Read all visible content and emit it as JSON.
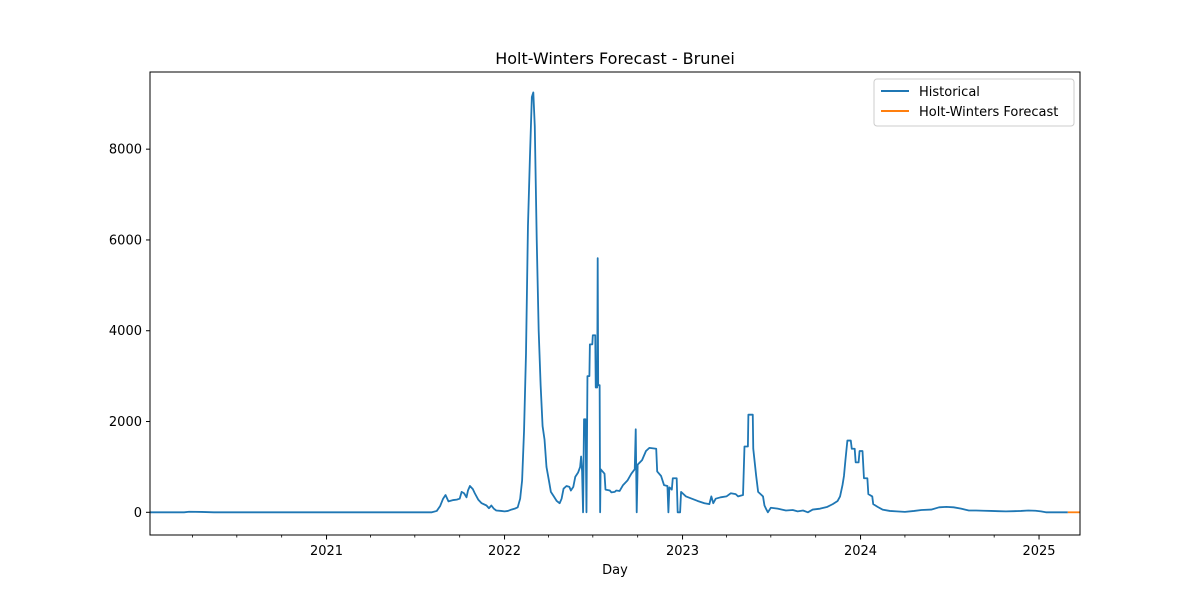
{
  "chart_data": {
    "type": "line",
    "title": "Holt-Winters Forecast - Brunei",
    "xlabel": "Day",
    "ylabel": "",
    "xlim": [
      "2020-01-05",
      "2025-03-26"
    ],
    "ylim": [
      -500,
      9700
    ],
    "x_ticks": [
      {
        "date": "2021-01-01",
        "label": "2021"
      },
      {
        "date": "2022-01-01",
        "label": "2022"
      },
      {
        "date": "2023-01-01",
        "label": "2023"
      },
      {
        "date": "2024-01-01",
        "label": "2024"
      },
      {
        "date": "2025-01-01",
        "label": "2025"
      }
    ],
    "x_minor_ticks": [
      "2020-04-01",
      "2020-07-01",
      "2020-10-01",
      "2021-04-01",
      "2021-07-01",
      "2021-10-01",
      "2022-04-01",
      "2022-07-01",
      "2022-10-01",
      "2023-04-01",
      "2023-07-01",
      "2023-10-01",
      "2024-04-01",
      "2024-07-01",
      "2024-10-01",
      "2025-04-01"
    ],
    "y_ticks": [
      0,
      2000,
      4000,
      6000,
      8000
    ],
    "y_tick_labels": [
      "0",
      "2000",
      "4000",
      "6000",
      "8000"
    ],
    "legend_position": "top-right",
    "grid": false,
    "series": [
      {
        "name": "Historical",
        "color": "#1f77b4",
        "points": [
          [
            "2020-01-05",
            0
          ],
          [
            "2020-03-15",
            0
          ],
          [
            "2020-03-25",
            12
          ],
          [
            "2020-04-20",
            8
          ],
          [
            "2020-05-15",
            0
          ],
          [
            "2021-01-01",
            0
          ],
          [
            "2021-07-01",
            0
          ],
          [
            "2021-08-05",
            0
          ],
          [
            "2021-08-15",
            30
          ],
          [
            "2021-08-22",
            140
          ],
          [
            "2021-08-28",
            300
          ],
          [
            "2021-09-02",
            380
          ],
          [
            "2021-09-08",
            240
          ],
          [
            "2021-09-18",
            270
          ],
          [
            "2021-09-25",
            280
          ],
          [
            "2021-10-01",
            300
          ],
          [
            "2021-10-05",
            450
          ],
          [
            "2021-10-10",
            420
          ],
          [
            "2021-10-15",
            330
          ],
          [
            "2021-10-18",
            480
          ],
          [
            "2021-10-22",
            580
          ],
          [
            "2021-10-28",
            510
          ],
          [
            "2021-11-01",
            420
          ],
          [
            "2021-11-08",
            280
          ],
          [
            "2021-11-15",
            200
          ],
          [
            "2021-11-25",
            150
          ],
          [
            "2021-11-30",
            90
          ],
          [
            "2021-12-05",
            150
          ],
          [
            "2021-12-10",
            80
          ],
          [
            "2021-12-15",
            40
          ],
          [
            "2021-12-25",
            30
          ],
          [
            "2022-01-01",
            20
          ],
          [
            "2022-01-08",
            30
          ],
          [
            "2022-01-15",
            60
          ],
          [
            "2022-01-22",
            80
          ],
          [
            "2022-01-28",
            110
          ],
          [
            "2022-02-02",
            300
          ],
          [
            "2022-02-06",
            700
          ],
          [
            "2022-02-10",
            1800
          ],
          [
            "2022-02-14",
            3500
          ],
          [
            "2022-02-18",
            6300
          ],
          [
            "2022-02-22",
            7800
          ],
          [
            "2022-02-26",
            9150
          ],
          [
            "2022-03-01",
            9250
          ],
          [
            "2022-03-04",
            8500
          ],
          [
            "2022-03-08",
            6000
          ],
          [
            "2022-03-12",
            4000
          ],
          [
            "2022-03-16",
            2800
          ],
          [
            "2022-03-20",
            1900
          ],
          [
            "2022-03-24",
            1600
          ],
          [
            "2022-03-28",
            1000
          ],
          [
            "2022-04-02",
            700
          ],
          [
            "2022-04-06",
            450
          ],
          [
            "2022-04-12",
            350
          ],
          [
            "2022-04-18",
            250
          ],
          [
            "2022-04-24",
            200
          ],
          [
            "2022-04-28",
            300
          ],
          [
            "2022-05-02",
            520
          ],
          [
            "2022-05-08",
            580
          ],
          [
            "2022-05-14",
            560
          ],
          [
            "2022-05-17",
            480
          ],
          [
            "2022-05-22",
            560
          ],
          [
            "2022-05-26",
            780
          ],
          [
            "2022-06-01",
            880
          ],
          [
            "2022-06-05",
            1000
          ],
          [
            "2022-06-07",
            1230
          ],
          [
            "2022-06-09",
            900
          ],
          [
            "2022-06-11",
            0
          ],
          [
            "2022-06-13",
            2050
          ],
          [
            "2022-06-16",
            2050
          ],
          [
            "2022-06-18",
            0
          ],
          [
            "2022-06-20",
            3000
          ],
          [
            "2022-06-24",
            3000
          ],
          [
            "2022-06-25",
            3700
          ],
          [
            "2022-06-30",
            3700
          ],
          [
            "2022-07-01",
            3900
          ],
          [
            "2022-07-06",
            3900
          ],
          [
            "2022-07-07",
            2750
          ],
          [
            "2022-07-10",
            2750
          ],
          [
            "2022-07-11",
            5600
          ],
          [
            "2022-07-12",
            2800
          ],
          [
            "2022-07-15",
            2800
          ],
          [
            "2022-07-16",
            0
          ],
          [
            "2022-07-17",
            950
          ],
          [
            "2022-07-25",
            850
          ],
          [
            "2022-07-27",
            500
          ],
          [
            "2022-08-05",
            480
          ],
          [
            "2022-08-08",
            440
          ],
          [
            "2022-08-15",
            450
          ],
          [
            "2022-08-18",
            480
          ],
          [
            "2022-08-25",
            470
          ],
          [
            "2022-09-01",
            600
          ],
          [
            "2022-09-10",
            700
          ],
          [
            "2022-09-18",
            850
          ],
          [
            "2022-09-25",
            950
          ],
          [
            "2022-09-27",
            1830
          ],
          [
            "2022-09-29",
            0
          ],
          [
            "2022-10-01",
            1050
          ],
          [
            "2022-10-10",
            1150
          ],
          [
            "2022-10-18",
            1350
          ],
          [
            "2022-10-25",
            1420
          ],
          [
            "2022-11-08",
            1400
          ],
          [
            "2022-11-10",
            900
          ],
          [
            "2022-11-18",
            800
          ],
          [
            "2022-11-24",
            600
          ],
          [
            "2022-12-01",
            580
          ],
          [
            "2022-12-03",
            0
          ],
          [
            "2022-12-05",
            550
          ],
          [
            "2022-12-10",
            500
          ],
          [
            "2022-12-12",
            750
          ],
          [
            "2022-12-20",
            750
          ],
          [
            "2022-12-22",
            0
          ],
          [
            "2022-12-27",
            0
          ],
          [
            "2022-12-29",
            450
          ],
          [
            "2023-01-08",
            350
          ],
          [
            "2023-01-20",
            300
          ],
          [
            "2023-02-01",
            250
          ],
          [
            "2023-02-15",
            200
          ],
          [
            "2023-02-25",
            180
          ],
          [
            "2023-03-01",
            350
          ],
          [
            "2023-03-05",
            200
          ],
          [
            "2023-03-10",
            300
          ],
          [
            "2023-03-20",
            330
          ],
          [
            "2023-04-01",
            350
          ],
          [
            "2023-04-10",
            420
          ],
          [
            "2023-04-20",
            400
          ],
          [
            "2023-04-25",
            350
          ],
          [
            "2023-05-05",
            380
          ],
          [
            "2023-05-08",
            1450
          ],
          [
            "2023-05-15",
            1450
          ],
          [
            "2023-05-16",
            2150
          ],
          [
            "2023-05-25",
            2150
          ],
          [
            "2023-05-26",
            1400
          ],
          [
            "2023-06-01",
            800
          ],
          [
            "2023-06-05",
            450
          ],
          [
            "2023-06-10",
            400
          ],
          [
            "2023-06-15",
            350
          ],
          [
            "2023-06-18",
            150
          ],
          [
            "2023-06-22",
            60
          ],
          [
            "2023-06-25",
            0
          ],
          [
            "2023-07-01",
            100
          ],
          [
            "2023-07-15",
            80
          ],
          [
            "2023-08-01",
            40
          ],
          [
            "2023-08-15",
            50
          ],
          [
            "2023-08-25",
            20
          ],
          [
            "2023-09-05",
            40
          ],
          [
            "2023-09-15",
            0
          ],
          [
            "2023-09-25",
            60
          ],
          [
            "2023-10-10",
            80
          ],
          [
            "2023-10-25",
            120
          ],
          [
            "2023-11-05",
            180
          ],
          [
            "2023-11-15",
            250
          ],
          [
            "2023-11-20",
            350
          ],
          [
            "2023-11-25",
            600
          ],
          [
            "2023-11-28",
            800
          ],
          [
            "2023-12-01",
            1150
          ],
          [
            "2023-12-05",
            1580
          ],
          [
            "2023-12-12",
            1580
          ],
          [
            "2023-12-14",
            1400
          ],
          [
            "2023-12-20",
            1400
          ],
          [
            "2023-12-22",
            1100
          ],
          [
            "2023-12-28",
            1100
          ],
          [
            "2023-12-30",
            1350
          ],
          [
            "2024-01-05",
            1350
          ],
          [
            "2024-01-08",
            750
          ],
          [
            "2024-01-15",
            750
          ],
          [
            "2024-01-17",
            400
          ],
          [
            "2024-01-25",
            350
          ],
          [
            "2024-01-27",
            180
          ],
          [
            "2024-02-05",
            120
          ],
          [
            "2024-02-15",
            60
          ],
          [
            "2024-03-01",
            30
          ],
          [
            "2024-03-15",
            20
          ],
          [
            "2024-04-01",
            10
          ],
          [
            "2024-04-20",
            30
          ],
          [
            "2024-05-05",
            50
          ],
          [
            "2024-05-25",
            60
          ],
          [
            "2024-06-10",
            110
          ],
          [
            "2024-06-25",
            120
          ],
          [
            "2024-07-10",
            110
          ],
          [
            "2024-07-25",
            80
          ],
          [
            "2024-08-10",
            40
          ],
          [
            "2024-08-25",
            40
          ],
          [
            "2024-09-10",
            35
          ],
          [
            "2024-09-25",
            30
          ],
          [
            "2024-10-10",
            25
          ],
          [
            "2024-10-25",
            20
          ],
          [
            "2024-11-10",
            25
          ],
          [
            "2024-11-25",
            30
          ],
          [
            "2024-12-10",
            40
          ],
          [
            "2024-12-25",
            35
          ],
          [
            "2025-01-05",
            20
          ],
          [
            "2025-01-15",
            0
          ],
          [
            "2025-03-01",
            0
          ]
        ]
      },
      {
        "name": "Holt-Winters Forecast",
        "color": "#ff7f0e",
        "points": [
          [
            "2025-03-01",
            0
          ],
          [
            "2025-03-26",
            0
          ]
        ]
      }
    ]
  }
}
